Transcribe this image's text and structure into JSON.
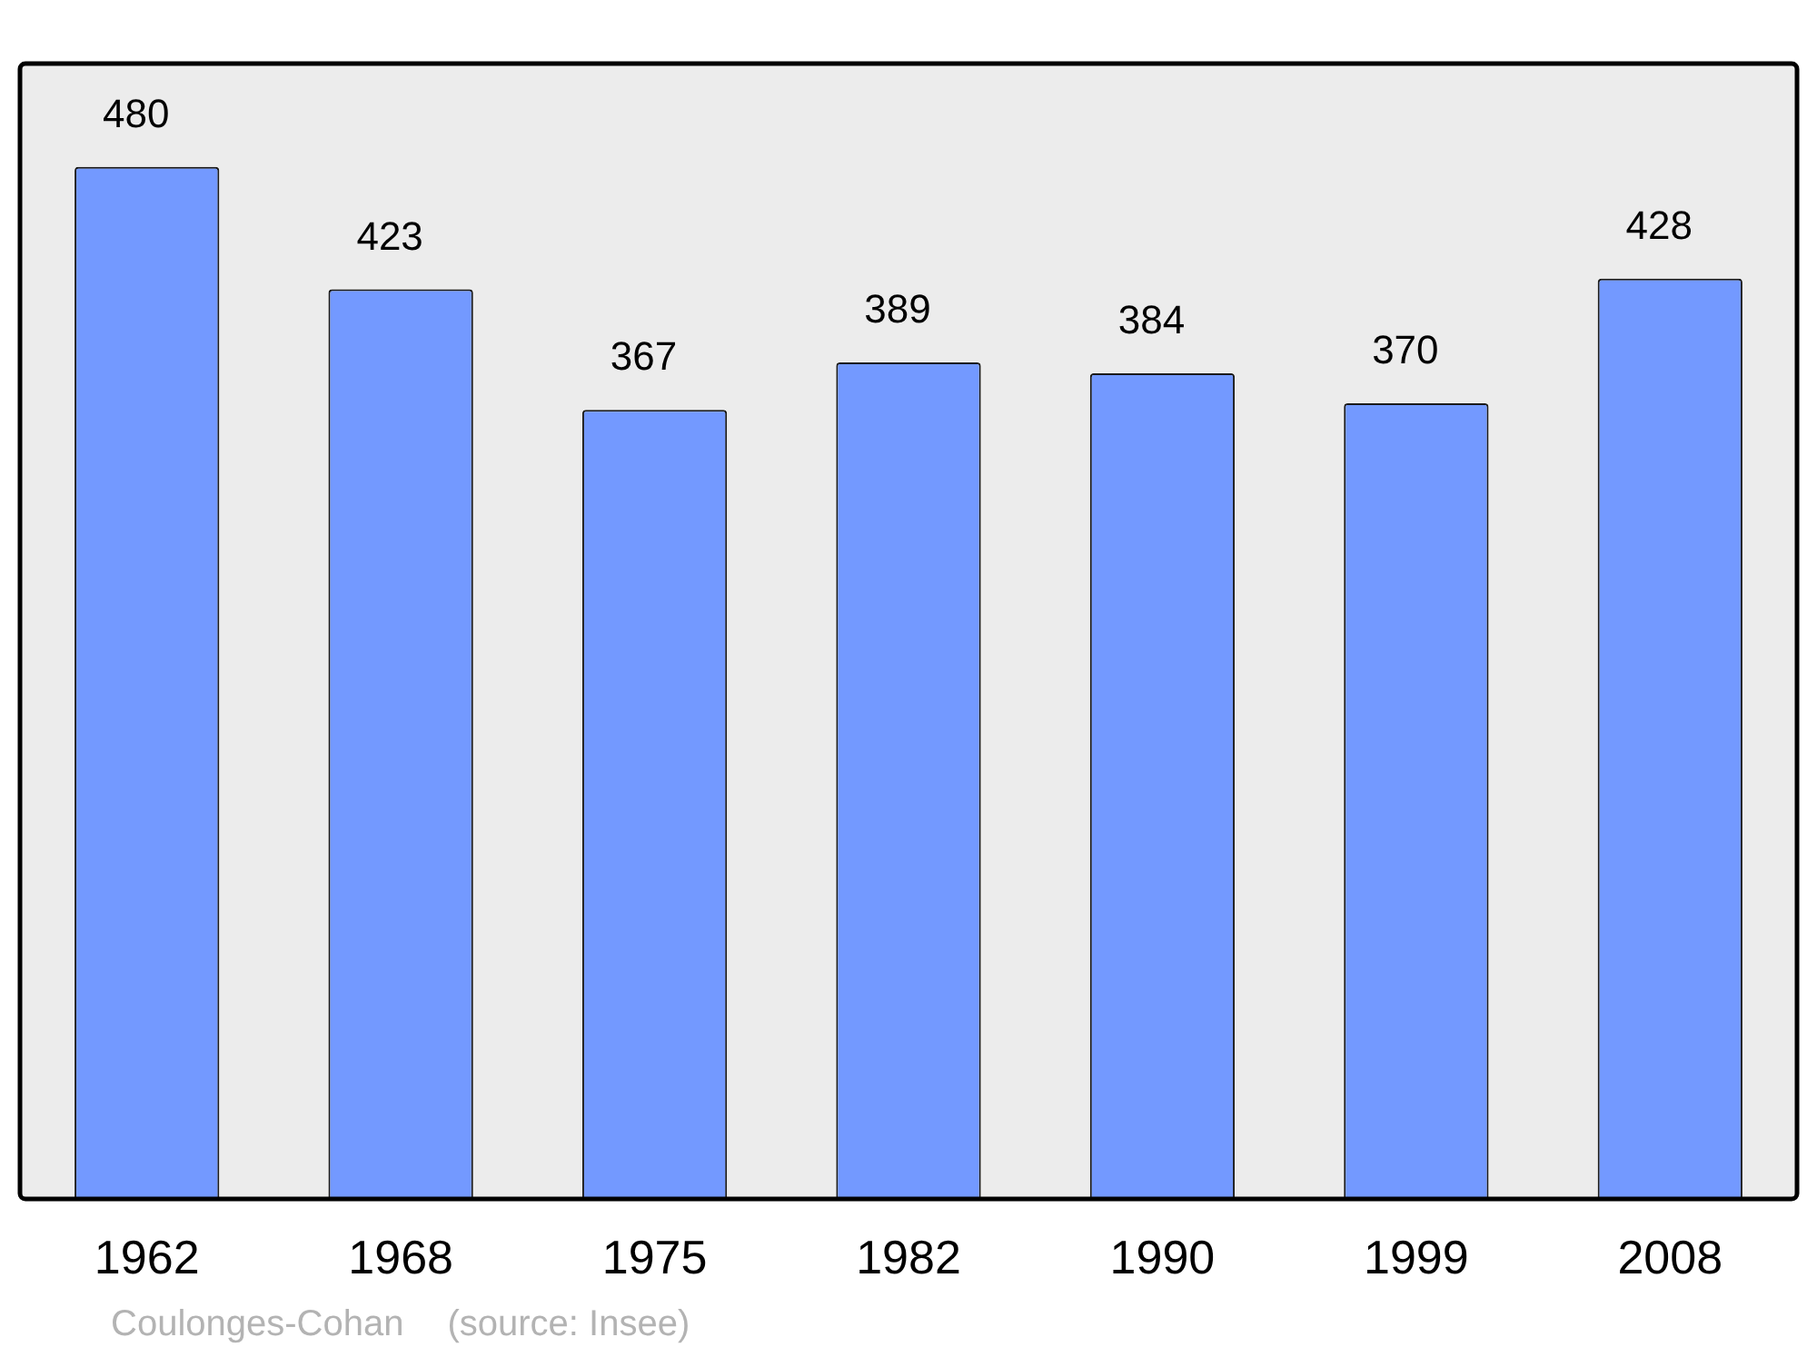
{
  "chart_data": {
    "type": "bar",
    "categories": [
      "1962",
      "1968",
      "1975",
      "1982",
      "1990",
      "1999",
      "2008"
    ],
    "values": [
      480,
      423,
      367,
      389,
      384,
      370,
      428
    ],
    "color": "#7399ff",
    "tick_labels": "x",
    "data_labels": true,
    "grid": false,
    "legend": false,
    "annotations": [
      "Coulonges-Cohan",
      "(source: Insee)"
    ]
  }
}
